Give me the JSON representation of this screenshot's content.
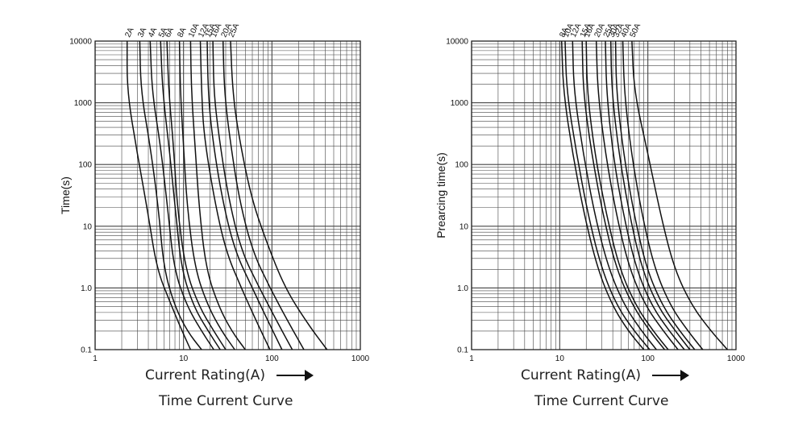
{
  "chart_data": [
    {
      "type": "line",
      "title": "Time Current Curve",
      "xlabel": "Current Rating(A)",
      "ylabel": "Time(s)",
      "x_scale": "log",
      "y_scale": "log",
      "xlim": [
        1,
        1000
      ],
      "ylim": [
        0.1,
        10000
      ],
      "x_ticks": [
        "1",
        "10",
        "100",
        "1000"
      ],
      "y_ticks": [
        "0.1",
        "1.0",
        "10",
        "100",
        "1000",
        "10000"
      ],
      "grid": true,
      "series": [
        {
          "name": "2A",
          "points": [
            [
              2.3,
              10000
            ],
            [
              2.3,
              1500
            ],
            [
              3,
              150
            ],
            [
              4,
              15
            ],
            [
              5,
              2
            ],
            [
              7,
              0.6
            ],
            [
              9,
              0.25
            ],
            [
              12,
              0.1
            ]
          ]
        },
        {
          "name": "3A",
          "points": [
            [
              3.2,
              10000
            ],
            [
              3.3,
              1500
            ],
            [
              4.2,
              200
            ],
            [
              5.2,
              20
            ],
            [
              6,
              2
            ],
            [
              8,
              0.5
            ],
            [
              11,
              0.2
            ],
            [
              16,
              0.1
            ]
          ]
        },
        {
          "name": "4A",
          "points": [
            [
              4.2,
              10000
            ],
            [
              4.4,
              1500
            ],
            [
              5.5,
              200
            ],
            [
              6.6,
              20
            ],
            [
              7.8,
              2
            ],
            [
              11,
              0.5
            ],
            [
              16,
              0.2
            ],
            [
              22,
              0.1
            ]
          ]
        },
        {
          "name": "5A",
          "points": [
            [
              5.5,
              10000
            ],
            [
              5.8,
              1500
            ],
            [
              7,
              150
            ],
            [
              8.2,
              15
            ],
            [
              9.5,
              2
            ],
            [
              13,
              0.5
            ],
            [
              19,
              0.2
            ],
            [
              26,
              0.1
            ]
          ]
        },
        {
          "name": "6A",
          "points": [
            [
              6.5,
              10000
            ],
            [
              6.8,
              1500
            ],
            [
              7.7,
              200
            ],
            [
              8.5,
              20
            ],
            [
              10.5,
              2
            ],
            [
              15,
              0.5
            ],
            [
              22,
              0.2
            ],
            [
              30,
              0.1
            ]
          ]
        },
        {
          "name": "8A",
          "points": [
            [
              9,
              10000
            ],
            [
              9.2,
              1500
            ],
            [
              10,
              200
            ],
            [
              11,
              20
            ],
            [
              13.5,
              2
            ],
            [
              19,
              0.5
            ],
            [
              27,
              0.2
            ],
            [
              38,
              0.1
            ]
          ]
        },
        {
          "name": "10A",
          "points": [
            [
              12,
              10000
            ],
            [
              12.3,
              1500
            ],
            [
              13.5,
              200
            ],
            [
              15,
              20
            ],
            [
              18,
              2
            ],
            [
              25,
              0.5
            ],
            [
              35,
              0.2
            ],
            [
              50,
              0.1
            ]
          ]
        },
        {
          "name": "12A",
          "points": [
            [
              15.5,
              10000
            ],
            [
              16,
              1500
            ],
            [
              17,
              300
            ],
            [
              22,
              30
            ],
            [
              30,
              4
            ],
            [
              45,
              1
            ],
            [
              70,
              0.25
            ],
            [
              95,
              0.1
            ]
          ]
        },
        {
          "name": "15A",
          "points": [
            [
              18.5,
              10000
            ],
            [
              19,
              1500
            ],
            [
              21,
              300
            ],
            [
              27,
              30
            ],
            [
              38,
              4
            ],
            [
              60,
              1
            ],
            [
              95,
              0.25
            ],
            [
              130,
              0.1
            ]
          ]
        },
        {
          "name": "16A",
          "points": [
            [
              21.5,
              10000
            ],
            [
              22,
              1500
            ],
            [
              25,
              300
            ],
            [
              32,
              30
            ],
            [
              45,
              4
            ],
            [
              72,
              1
            ],
            [
              120,
              0.25
            ],
            [
              170,
              0.1
            ]
          ]
        },
        {
          "name": "20A",
          "points": [
            [
              28,
              10000
            ],
            [
              29,
              1500
            ],
            [
              33,
              300
            ],
            [
              42,
              30
            ],
            [
              60,
              4
            ],
            [
              95,
              1
            ],
            [
              160,
              0.25
            ],
            [
              230,
              0.1
            ]
          ]
        },
        {
          "name": "25A",
          "points": [
            [
              34,
              10000
            ],
            [
              36,
              1500
            ],
            [
              42,
              300
            ],
            [
              58,
              30
            ],
            [
              85,
              6
            ],
            [
              140,
              1
            ],
            [
              260,
              0.25
            ],
            [
              420,
              0.1
            ]
          ]
        }
      ]
    },
    {
      "type": "line",
      "title": "Time Current Curve",
      "xlabel": "Current Rating(A)",
      "ylabel": "Prearcing time(s)",
      "x_scale": "log",
      "y_scale": "log",
      "xlim": [
        1,
        1000
      ],
      "ylim": [
        0.1,
        10000
      ],
      "x_ticks": [
        "1",
        "10",
        "100",
        "1000"
      ],
      "y_ticks": [
        "0.1",
        "1.0",
        "10",
        "100",
        "1000",
        "10000"
      ],
      "grid": true,
      "series": [
        {
          "name": "8A",
          "points": [
            [
              10.5,
              10000
            ],
            [
              11,
              1500
            ],
            [
              14,
              150
            ],
            [
              19,
              15
            ],
            [
              27,
              2
            ],
            [
              40,
              0.5
            ],
            [
              60,
              0.2
            ],
            [
              90,
              0.1
            ]
          ]
        },
        {
          "name": "10A",
          "points": [
            [
              11.5,
              10000
            ],
            [
              12,
              1500
            ],
            [
              15.5,
              150
            ],
            [
              21,
              15
            ],
            [
              30,
              2
            ],
            [
              45,
              0.5
            ],
            [
              70,
              0.2
            ],
            [
              105,
              0.1
            ]
          ]
        },
        {
          "name": "12A",
          "points": [
            [
              14,
              10000
            ],
            [
              14.5,
              1500
            ],
            [
              18.5,
              150
            ],
            [
              25,
              15
            ],
            [
              36,
              2
            ],
            [
              55,
              0.5
            ],
            [
              85,
              0.2
            ],
            [
              125,
              0.1
            ]
          ]
        },
        {
          "name": "15A",
          "points": [
            [
              18,
              10000
            ],
            [
              18.5,
              1500
            ],
            [
              23,
              150
            ],
            [
              31,
              15
            ],
            [
              44,
              2
            ],
            [
              68,
              0.5
            ],
            [
              105,
              0.2
            ],
            [
              155,
              0.1
            ]
          ]
        },
        {
          "name": "16A",
          "points": [
            [
              20,
              10000
            ],
            [
              20.5,
              1500
            ],
            [
              25,
              150
            ],
            [
              34,
              15
            ],
            [
              48,
              2
            ],
            [
              74,
              0.5
            ],
            [
              115,
              0.2
            ],
            [
              170,
              0.1
            ]
          ]
        },
        {
          "name": "20A",
          "points": [
            [
              26,
              10000
            ],
            [
              27,
              1500
            ],
            [
              33,
              150
            ],
            [
              44,
              15
            ],
            [
              62,
              2
            ],
            [
              95,
              0.5
            ],
            [
              150,
              0.2
            ],
            [
              220,
              0.1
            ]
          ]
        },
        {
          "name": "25A",
          "points": [
            [
              33,
              10000
            ],
            [
              34,
              1500
            ],
            [
              40,
              150
            ],
            [
              53,
              15
            ],
            [
              74,
              2
            ],
            [
              112,
              0.5
            ],
            [
              175,
              0.2
            ],
            [
              260,
              0.1
            ]
          ]
        },
        {
          "name": "30A",
          "points": [
            [
              38,
              10000
            ],
            [
              39,
              1500
            ],
            [
              47,
              150
            ],
            [
              62,
              15
            ],
            [
              86,
              2
            ],
            [
              130,
              0.5
            ],
            [
              205,
              0.2
            ],
            [
              300,
              0.1
            ]
          ]
        },
        {
          "name": "32A",
          "points": [
            [
              43,
              10000
            ],
            [
              44,
              1500
            ],
            [
              53,
              150
            ],
            [
              70,
              15
            ],
            [
              97,
              2
            ],
            [
              148,
              0.5
            ],
            [
              230,
              0.2
            ],
            [
              340,
              0.1
            ]
          ]
        },
        {
          "name": "40A",
          "points": [
            [
              52,
              10000
            ],
            [
              54,
              1500
            ],
            [
              65,
              150
            ],
            [
              86,
              15
            ],
            [
              120,
              2
            ],
            [
              182,
              0.5
            ],
            [
              285,
              0.2
            ],
            [
              420,
              0.1
            ]
          ]
        },
        {
          "name": "50A",
          "points": [
            [
              66,
              10000
            ],
            [
              70,
              1500
            ],
            [
              100,
              150
            ],
            [
              140,
              15
            ],
            [
              200,
              2
            ],
            [
              320,
              0.5
            ],
            [
              520,
              0.2
            ],
            [
              800,
              0.1
            ]
          ]
        }
      ]
    }
  ]
}
